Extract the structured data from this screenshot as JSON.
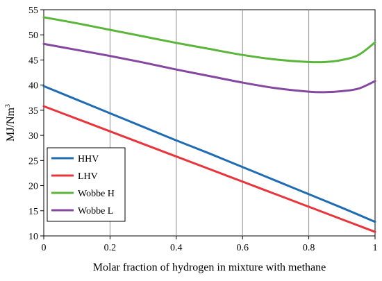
{
  "chart_data": {
    "type": "line",
    "title": "",
    "xlabel": "Molar fraction of hydrogen in mixture with methane",
    "ylabel": "MJ/Nm",
    "ylabel_superscript": "3",
    "xlim": [
      0,
      1
    ],
    "ylim": [
      10,
      55
    ],
    "xticks": [
      0,
      0.2,
      0.4,
      0.6,
      0.8,
      1
    ],
    "xtick_labels": [
      "0",
      "0.2",
      "0.4",
      "0.6",
      "0.8",
      "1"
    ],
    "yticks": [
      10,
      15,
      20,
      25,
      30,
      35,
      40,
      45,
      50,
      55
    ],
    "ytick_labels": [
      "10",
      "15",
      "20",
      "25",
      "30",
      "35",
      "40",
      "45",
      "50",
      "55"
    ],
    "grid": "vertical",
    "legend_position": "lower-left",
    "series": [
      {
        "name": "HHV",
        "color": "#1f6cb4",
        "x": [
          0,
          0.1,
          0.2,
          0.3,
          0.4,
          0.5,
          0.6,
          0.7,
          0.8,
          0.9,
          1.0
        ],
        "y": [
          39.8,
          37.1,
          34.4,
          31.7,
          29.0,
          26.4,
          23.7,
          21.0,
          18.3,
          15.6,
          12.8
        ]
      },
      {
        "name": "LHV",
        "color": "#e8343a",
        "x": [
          0,
          0.1,
          0.2,
          0.3,
          0.4,
          0.5,
          0.6,
          0.7,
          0.8,
          0.9,
          1.0
        ],
        "y": [
          35.8,
          33.3,
          30.8,
          28.3,
          25.8,
          23.3,
          20.8,
          18.3,
          15.8,
          13.3,
          10.8
        ]
      },
      {
        "name": "Wobbe H",
        "color": "#5ab53a",
        "x": [
          0,
          0.1,
          0.2,
          0.3,
          0.4,
          0.5,
          0.6,
          0.7,
          0.8,
          0.85,
          0.9,
          0.95,
          1.0
        ],
        "y": [
          53.5,
          52.3,
          51.0,
          49.7,
          48.4,
          47.2,
          46.0,
          45.1,
          44.6,
          44.6,
          45.0,
          46.0,
          48.5
        ]
      },
      {
        "name": "Wobbe L",
        "color": "#8547a0",
        "x": [
          0,
          0.1,
          0.2,
          0.3,
          0.4,
          0.5,
          0.6,
          0.7,
          0.8,
          0.85,
          0.9,
          0.95,
          1.0
        ],
        "y": [
          48.2,
          47.0,
          45.8,
          44.5,
          43.1,
          41.8,
          40.5,
          39.4,
          38.7,
          38.6,
          38.8,
          39.3,
          40.8
        ]
      }
    ]
  }
}
